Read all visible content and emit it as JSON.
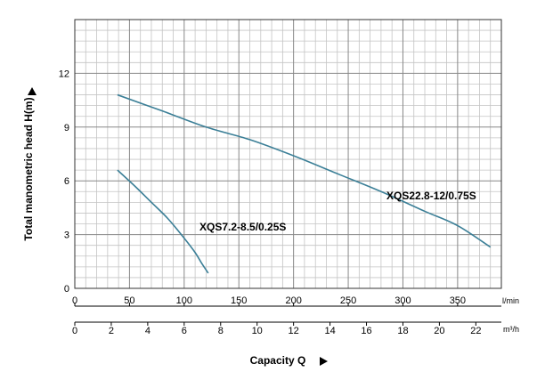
{
  "chart_data": {
    "type": "line",
    "title": "",
    "ylabel": "Total manometric head H(m)",
    "xlabel": "Capacity Q",
    "ylim": [
      0,
      15
    ],
    "yticks": [
      0,
      3,
      6,
      9,
      12
    ],
    "x_primary": {
      "unit": "l/min",
      "lim": [
        0,
        390
      ],
      "ticks": [
        0,
        50,
        100,
        150,
        200,
        250,
        300,
        350
      ]
    },
    "x_secondary": {
      "unit": "m³/h",
      "lim": [
        0,
        23.4
      ],
      "ticks": [
        0,
        2,
        4,
        6,
        8,
        10,
        12,
        14,
        16,
        18,
        20,
        22
      ]
    },
    "grid": true,
    "line_color": "#3b7f97",
    "series": [
      {
        "name": "XQS7.2-8.5/0.25S",
        "x_lmin": [
          39,
          55,
          70,
          85,
          100,
          110,
          116,
          122
        ],
        "y": [
          6.6,
          5.7,
          4.8,
          3.9,
          2.8,
          2.0,
          1.4,
          0.85
        ]
      },
      {
        "name": "XQS22.8-12/0.75S",
        "x_lmin": [
          39,
          80,
          120,
          160,
          200,
          240,
          280,
          320,
          350,
          380
        ],
        "y": [
          10.8,
          9.9,
          9.0,
          8.3,
          7.4,
          6.4,
          5.4,
          4.3,
          3.5,
          2.3
        ]
      }
    ]
  }
}
